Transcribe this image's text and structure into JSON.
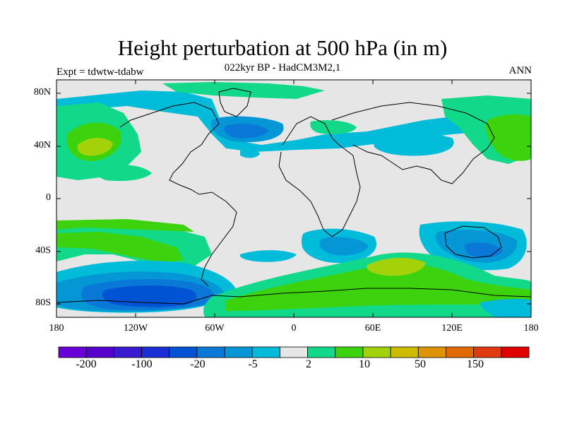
{
  "header": {
    "title": "Height perturbation at 500 hPa (in m)",
    "subtitle": "022kyr BP - HadCM3M2,1",
    "left_note": "Expt = tdwtw-tdabw",
    "right_note": "ANN"
  },
  "map": {
    "lat_labels": [
      "80N",
      "40N",
      "0",
      "40S",
      "80S"
    ],
    "lon_labels": [
      "180",
      "120W",
      "60W",
      "0",
      "60E",
      "120E",
      "180"
    ],
    "background_color": "#e6e6e6"
  },
  "colorbar": {
    "colors": [
      "#6a00d8",
      "#5500cc",
      "#3b1ad2",
      "#1a2fd6",
      "#0054d4",
      "#0a78d6",
      "#0596d6",
      "#00bcd9",
      "#e6e6e6",
      "#12d98a",
      "#3dd20e",
      "#a3d20a",
      "#cdbc00",
      "#dc9400",
      "#e06a00",
      "#e03a10",
      "#e00000"
    ],
    "labels": [
      "-200",
      "-100",
      "-20",
      "-5",
      "2",
      "10",
      "50",
      "150"
    ]
  },
  "colors": {
    "c1": "#00bcd9",
    "c2": "#0596d6",
    "c3": "#0a78d6",
    "c4": "#0054d4",
    "w1": "#12d98a",
    "w2": "#3dd20e",
    "w3": "#a3d20a"
  }
}
